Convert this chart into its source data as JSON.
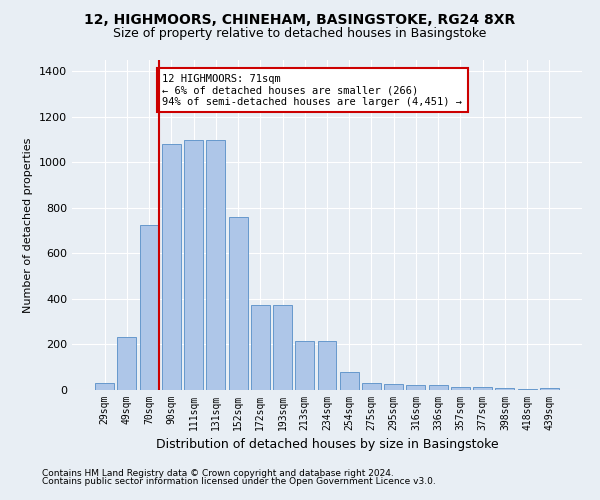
{
  "title": "12, HIGHMOORS, CHINEHAM, BASINGSTOKE, RG24 8XR",
  "subtitle": "Size of property relative to detached houses in Basingstoke",
  "xlabel": "Distribution of detached houses by size in Basingstoke",
  "ylabel": "Number of detached properties",
  "categories": [
    "29sqm",
    "49sqm",
    "70sqm",
    "90sqm",
    "111sqm",
    "131sqm",
    "152sqm",
    "172sqm",
    "193sqm",
    "213sqm",
    "234sqm",
    "254sqm",
    "275sqm",
    "295sqm",
    "316sqm",
    "336sqm",
    "357sqm",
    "377sqm",
    "398sqm",
    "418sqm",
    "439sqm"
  ],
  "values": [
    30,
    235,
    725,
    1080,
    1100,
    1100,
    760,
    375,
    375,
    215,
    215,
    80,
    30,
    25,
    20,
    20,
    15,
    15,
    10,
    5,
    10
  ],
  "bar_color": "#aec6e8",
  "bar_edge_color": "#6699cc",
  "vline_color": "#cc0000",
  "annotation_text": "12 HIGHMOORS: 71sqm\n← 6% of detached houses are smaller (266)\n94% of semi-detached houses are larger (4,451) →",
  "annotation_box_color": "#ffffff",
  "annotation_box_edge_color": "#cc0000",
  "ylim": [
    0,
    1450
  ],
  "yticks": [
    0,
    200,
    400,
    600,
    800,
    1000,
    1200,
    1400
  ],
  "footnote1": "Contains HM Land Registry data © Crown copyright and database right 2024.",
  "footnote2": "Contains public sector information licensed under the Open Government Licence v3.0.",
  "bg_color": "#e8eef4",
  "title_fontsize": 10,
  "subtitle_fontsize": 9
}
